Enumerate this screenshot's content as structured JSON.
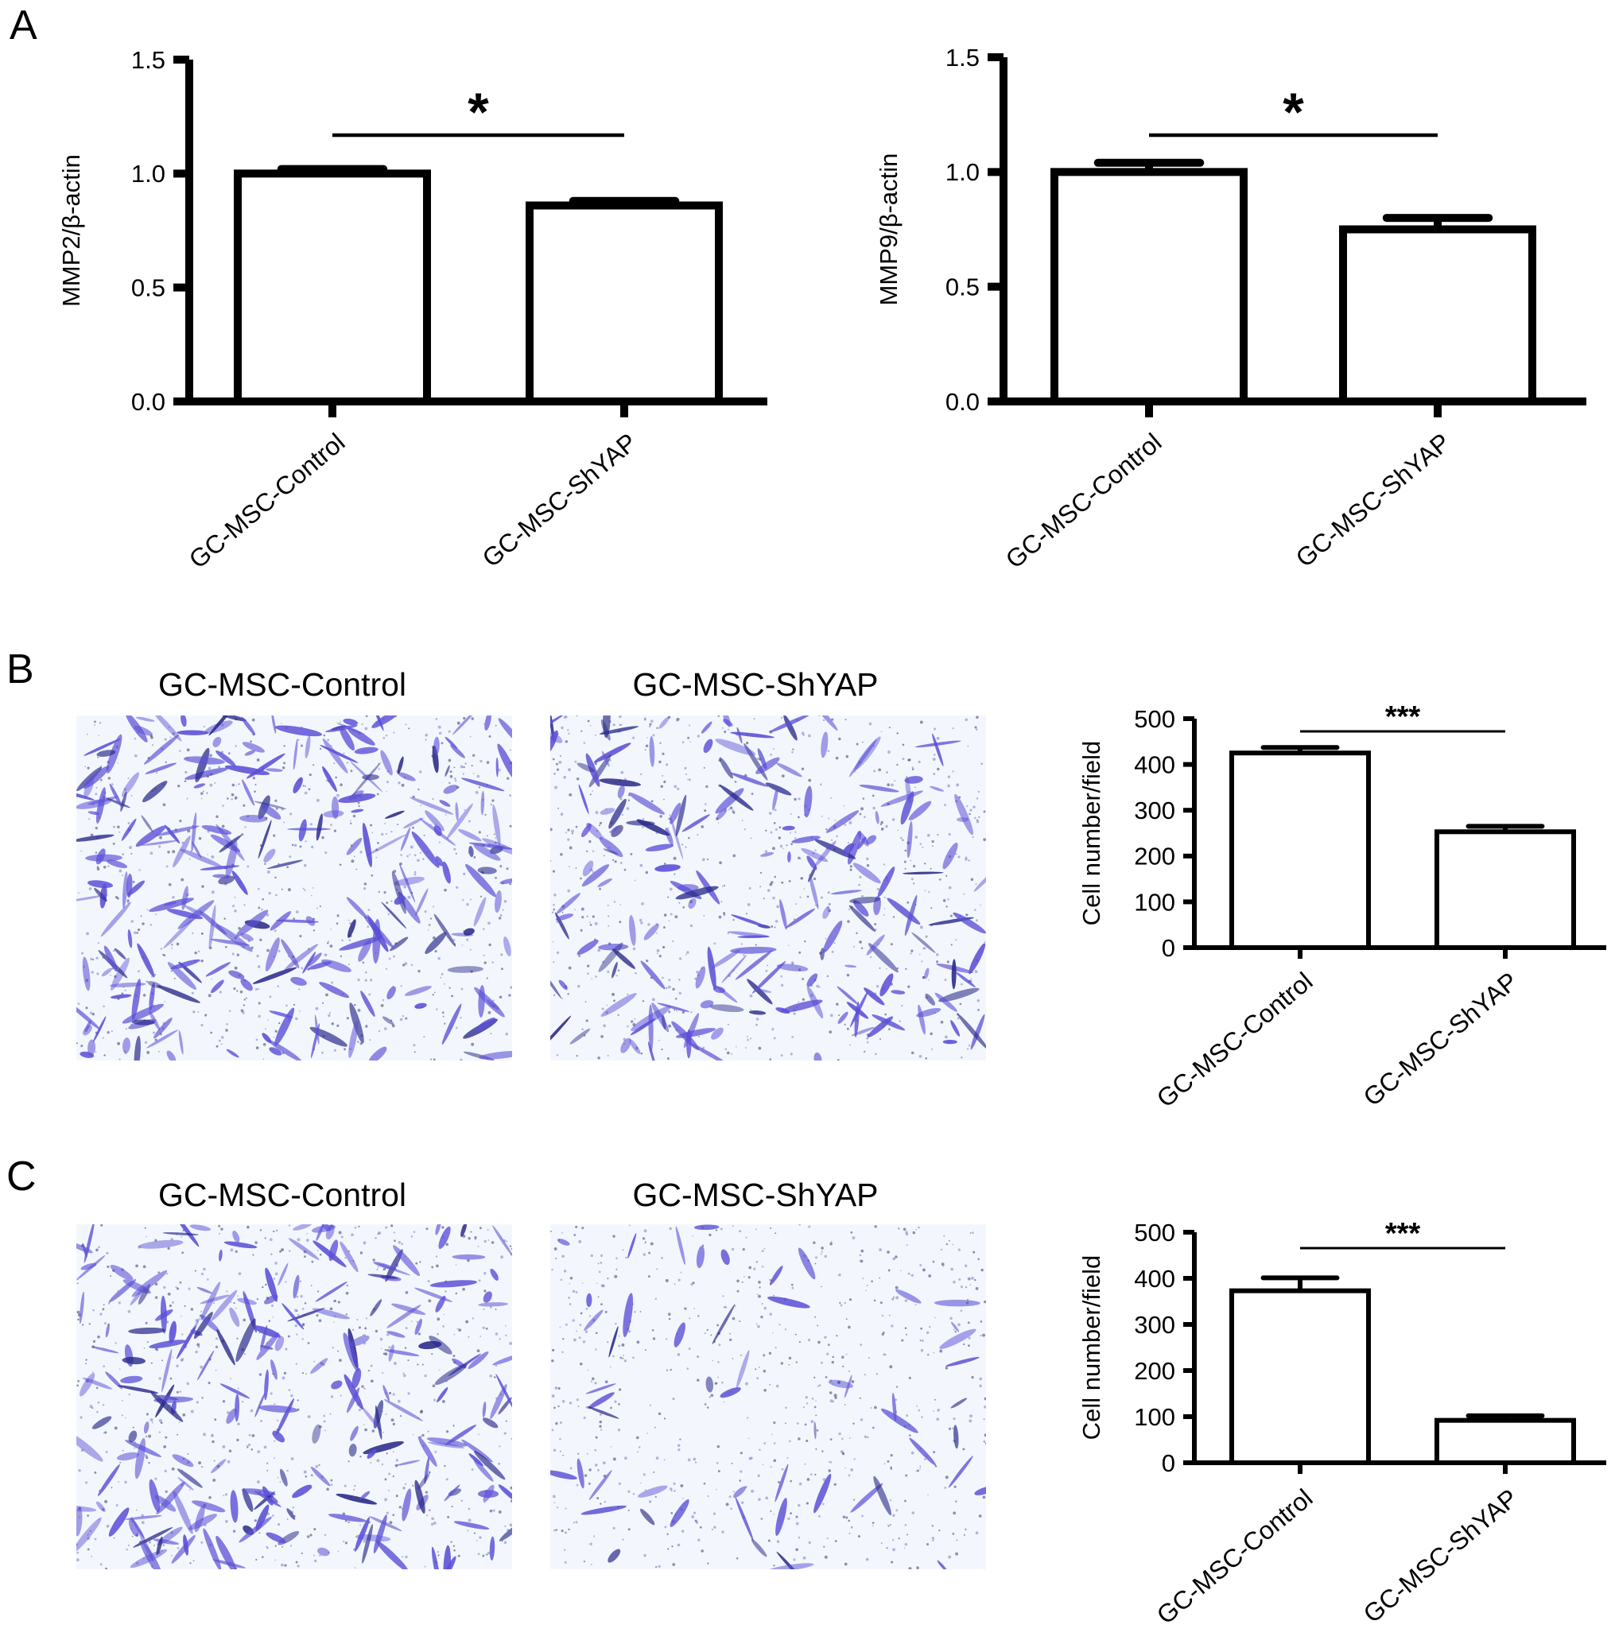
{
  "panels": {
    "a": {
      "label": "A"
    },
    "b": {
      "label": "B",
      "image_titles": [
        "GC-MSC-Control",
        "GC-MSC-ShYAP"
      ]
    },
    "c": {
      "label": "C",
      "image_titles": [
        "GC-MSC-Control",
        "GC-MSC-ShYAP"
      ]
    }
  },
  "colors": {
    "stain": "#5b4fd6",
    "stain_dark": "#2a2a8a",
    "background": "#f3f7fd",
    "axis": "#000000"
  },
  "chart_data": [
    {
      "type": "bar",
      "panel": "A",
      "categories": [
        "GC-MSC-Control",
        "GC-MSC-ShYAP"
      ],
      "values": [
        1.0,
        0.86
      ],
      "errors": [
        0.02,
        0.02
      ],
      "ylabel": "MMP2/β-actin",
      "ylim": [
        0,
        1.5
      ],
      "yticks": [
        "0.0",
        "0.5",
        "1.0",
        "1.5"
      ],
      "ytick_values": [
        0,
        0.5,
        1.0,
        1.5
      ],
      "significance": "*"
    },
    {
      "type": "bar",
      "panel": "A",
      "categories": [
        "GC-MSC-Control",
        "GC-MSC-ShYAP"
      ],
      "values": [
        1.0,
        0.75
      ],
      "errors": [
        0.04,
        0.05
      ],
      "ylabel": "MMP9/β-actin",
      "ylim": [
        0,
        1.5
      ],
      "yticks": [
        "0.0",
        "0.5",
        "1.0",
        "1.5"
      ],
      "ytick_values": [
        0,
        0.5,
        1.0,
        1.5
      ],
      "significance": "*"
    },
    {
      "type": "bar",
      "panel": "B",
      "categories": [
        "GC-MSC-Control",
        "GC-MSC-ShYAP"
      ],
      "values": [
        425,
        253
      ],
      "errors": [
        12,
        12
      ],
      "ylabel": "Cell number/field",
      "ylim": [
        0,
        500
      ],
      "yticks": [
        "0",
        "100",
        "200",
        "300",
        "400",
        "500"
      ],
      "ytick_values": [
        0,
        100,
        200,
        300,
        400,
        500
      ],
      "significance": "***"
    },
    {
      "type": "bar",
      "panel": "C",
      "categories": [
        "GC-MSC-Control",
        "GC-MSC-ShYAP"
      ],
      "values": [
        373,
        92
      ],
      "errors": [
        28,
        10
      ],
      "ylabel": "Cell number/field",
      "ylim": [
        0,
        500
      ],
      "yticks": [
        "0",
        "100",
        "200",
        "300",
        "400",
        "500"
      ],
      "ytick_values": [
        0,
        100,
        200,
        300,
        400,
        500
      ],
      "significance": "***"
    }
  ]
}
